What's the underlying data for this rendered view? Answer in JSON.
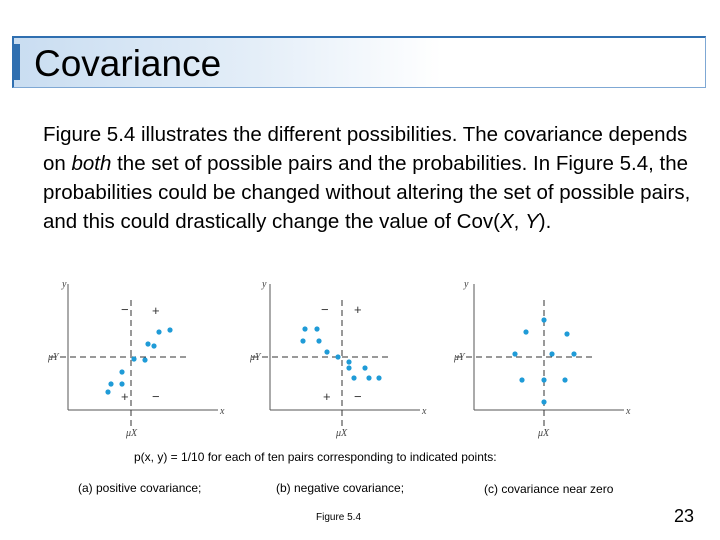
{
  "title": "Covariance",
  "paragraph": {
    "part1": "Figure 5.4 illustrates the different possibilities. The covariance depends on ",
    "emphasis": "both",
    "part2": " the set of possible pairs and the probabilities. In Figure 5.4, the probabilities could be changed without altering the set of possible pairs, and this could drastically change the value of Cov(",
    "var_x": "X",
    "sep": ", ",
    "var_y": "Y",
    "end": ")."
  },
  "figures": [
    {
      "x_label": "x",
      "y_label": "y",
      "mu_x": "μX",
      "mu_y": "μY",
      "signs": {
        "tl": "−",
        "tr": "+",
        "bl": "+",
        "br": "−"
      }
    },
    {
      "x_label": "x",
      "y_label": "y",
      "mu_x": "μX",
      "mu_y": "μY",
      "signs": {
        "tl": "−",
        "tr": "+",
        "bl": "+",
        "br": "−"
      }
    },
    {
      "x_label": "x",
      "y_label": "y",
      "mu_x": "μX",
      "mu_y": "μY",
      "signs": {
        "tl": "−",
        "tr": "+",
        "bl": "+",
        "br": "−"
      }
    }
  ],
  "caption": {
    "main": "p(x, y) = 1/10 for each of ten pairs corresponding to indicated points:",
    "a": "(a) positive covariance;",
    "b": "(b) negative covariance;",
    "c": "(c) covariance near zero"
  },
  "figure_label": "Figure 5.4",
  "page_number": "23",
  "colors": {
    "accent": "#2f6fb0",
    "point": "#1f9bd7",
    "title_gradient": "#c9ddf1"
  }
}
